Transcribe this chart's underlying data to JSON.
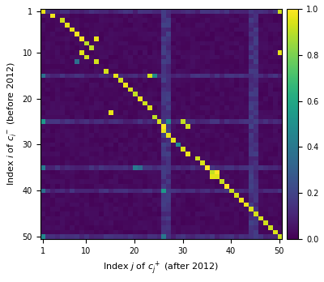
{
  "n": 50,
  "xlabel": "Index $j$ of $c_j^+$ (after 2012)",
  "ylabel": "Index $i$ of $c_i^-$ (before 2012)",
  "xticks": [
    1,
    10,
    20,
    30,
    40,
    50
  ],
  "yticks": [
    1,
    10,
    20,
    30,
    40,
    50
  ],
  "colormap": "viridis",
  "vmin": 0.0,
  "vmax": 1.0,
  "bright_spots_1indexed": [
    [
      1,
      1
    ],
    [
      2,
      3
    ],
    [
      3,
      5
    ],
    [
      4,
      6
    ],
    [
      5,
      7
    ],
    [
      6,
      8
    ],
    [
      7,
      9
    ],
    [
      8,
      10
    ],
    [
      7,
      12
    ],
    [
      9,
      11
    ],
    [
      10,
      9
    ],
    [
      11,
      10
    ],
    [
      12,
      12
    ],
    [
      14,
      14
    ],
    [
      15,
      16
    ],
    [
      16,
      17
    ],
    [
      17,
      18
    ],
    [
      18,
      19
    ],
    [
      19,
      20
    ],
    [
      20,
      21
    ],
    [
      21,
      22
    ],
    [
      22,
      23
    ],
    [
      23,
      15
    ],
    [
      15,
      23
    ],
    [
      24,
      24
    ],
    [
      25,
      25
    ],
    [
      26,
      26
    ],
    [
      27,
      26
    ],
    [
      28,
      27
    ],
    [
      29,
      28
    ],
    [
      30,
      29
    ],
    [
      31,
      30
    ],
    [
      32,
      31
    ],
    [
      25,
      30
    ],
    [
      26,
      31
    ],
    [
      33,
      33
    ],
    [
      34,
      34
    ],
    [
      35,
      35
    ],
    [
      36,
      36
    ],
    [
      37,
      37
    ],
    [
      38,
      38
    ],
    [
      39,
      39
    ],
    [
      40,
      40
    ],
    [
      41,
      41
    ],
    [
      42,
      42
    ],
    [
      43,
      43
    ],
    [
      44,
      44
    ],
    [
      45,
      45
    ],
    [
      46,
      46
    ],
    [
      47,
      47
    ],
    [
      48,
      48
    ],
    [
      49,
      49
    ],
    [
      50,
      50
    ],
    [
      1,
      50
    ],
    [
      10,
      50
    ],
    [
      36,
      37
    ],
    [
      37,
      36
    ]
  ],
  "col_stripes_0indexed": [
    25,
    26,
    43,
    44
  ],
  "row_stripes_0indexed": [
    0,
    14,
    24,
    34,
    39,
    49
  ],
  "col_stripe_base": 0.12,
  "row_stripe_base": 0.1,
  "bg_low": 0.01,
  "bg_high": 0.04,
  "seed": 42
}
